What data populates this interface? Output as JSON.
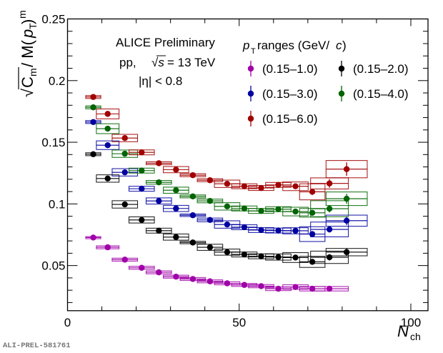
{
  "chart_data": {
    "type": "scatter",
    "title": "",
    "annotations": {
      "experiment": "ALICE Preliminary",
      "system": "pp,",
      "sqrt_s_symbol": "√s",
      "energy": "= 13 TeV",
      "eta_cut": "|η| < 0.8"
    },
    "xlabel_main": "N",
    "xlabel_sub": "ch",
    "ylabel": {
      "sqrt": "√",
      "c": "C",
      "c_sub": "m",
      "mid": " / M(",
      "p": "p",
      "p_sub": "T",
      "close": ")",
      "close_sub": "m"
    },
    "xlim": [
      0,
      105
    ],
    "ylim": [
      0.0134,
      0.25
    ],
    "x_ticks": [
      0,
      50,
      100
    ],
    "x_tick_labels": [
      "0",
      "50",
      "100"
    ],
    "x_minor_step": 10,
    "y_ticks": [
      0.05,
      0.1,
      0.15,
      0.2,
      0.25
    ],
    "y_tick_labels": [
      "0.05",
      "0.1",
      "0.15",
      "0.2",
      "0.25"
    ],
    "y_minor_step": 0.01,
    "grid": false,
    "legend": {
      "title_p": "p",
      "title_sub": "T",
      "title_rest": " ranges (GeV/",
      "title_c": "c",
      "title_end": ")",
      "placement": "top-right"
    },
    "x": [
      7.5,
      11.7,
      16.7,
      21.6,
      26.6,
      31.6,
      36.5,
      41.5,
      46.5,
      51.5,
      56.4,
      61.4,
      66.4,
      71.3,
      76.3,
      81.3
    ],
    "x_halfwidth": [
      2.2,
      3.3,
      3.7,
      3.7,
      3.7,
      3.7,
      3.7,
      3.7,
      3.7,
      3.7,
      3.7,
      3.7,
      3.7,
      3.7,
      5.5,
      6.0
    ],
    "series": [
      {
        "name": "(0.15–1.0)",
        "color": "#a000a8",
        "values": [
          0.0727,
          0.0648,
          0.0548,
          0.0482,
          0.0445,
          0.041,
          0.0391,
          0.0372,
          0.0356,
          0.0343,
          0.0333,
          0.0312,
          0.0326,
          0.0312,
          0.0312
        ],
        "sys": [
          0.0008,
          0.0012,
          0.0012,
          0.0012,
          0.0012,
          0.0012,
          0.0012,
          0.0012,
          0.0012,
          0.0012,
          0.0013,
          0.0015,
          0.0018,
          0.0018,
          0.0018
        ],
        "stat": [
          0.0005,
          0.0005,
          0.0005,
          0.0005,
          0.0005,
          0.0005,
          0.0005,
          0.0005,
          0.0005,
          0.0005,
          0.0006,
          0.0007,
          0.0008,
          0.001,
          0.0012
        ]
      },
      {
        "name": "(0.15–2.0)",
        "color": "#000000",
        "values": [
          0.1403,
          0.1206,
          0.0996,
          0.087,
          0.0783,
          0.0731,
          0.0687,
          0.0648,
          0.0609,
          0.059,
          0.0575,
          0.0569,
          0.0565,
          0.053,
          0.0567,
          0.0609
        ],
        "sys": [
          0.0012,
          0.003,
          0.003,
          0.0025,
          0.002,
          0.0025,
          0.001,
          0.0025,
          0.0025,
          0.002,
          0.002,
          0.0025,
          0.004,
          0.0045,
          0.005,
          0.003
        ],
        "stat": [
          0.0005,
          0.0005,
          0.0005,
          0.0005,
          0.0005,
          0.0005,
          0.0005,
          0.0006,
          0.0008,
          0.001,
          0.001,
          0.0012,
          0.0015,
          0.002,
          0.0025,
          0.003
        ]
      },
      {
        "name": "(0.15–3.0)",
        "color": "#0000a0",
        "values": [
          0.1664,
          0.1476,
          0.1256,
          0.1123,
          0.1024,
          0.0963,
          0.0908,
          0.087,
          0.0833,
          0.0811,
          0.0788,
          0.0784,
          0.0782,
          0.0755,
          0.0793,
          0.0864
        ],
        "sys": [
          0.0012,
          0.0035,
          0.003,
          0.002,
          0.0025,
          0.0025,
          0.001,
          0.0015,
          0.003,
          0.002,
          0.002,
          0.002,
          0.0025,
          0.006,
          0.006,
          0.0045
        ],
        "stat": [
          0.0005,
          0.0005,
          0.0005,
          0.0005,
          0.0005,
          0.0005,
          0.0005,
          0.0006,
          0.0008,
          0.001,
          0.001,
          0.0012,
          0.0015,
          0.002,
          0.0025,
          0.0035
        ]
      },
      {
        "name": "(0.15–4.0)",
        "color": "#006400",
        "values": [
          0.1783,
          0.161,
          0.1407,
          0.127,
          0.1175,
          0.1111,
          0.1061,
          0.1024,
          0.098,
          0.0963,
          0.0943,
          0.0957,
          0.0938,
          0.0928,
          0.0961,
          0.1042
        ],
        "sys": [
          0.0012,
          0.004,
          0.003,
          0.002,
          0.0015,
          0.0025,
          0.0012,
          0.0015,
          0.003,
          0.002,
          0.002,
          0.002,
          0.0035,
          0.0035,
          0.0065,
          0.0055
        ],
        "stat": [
          0.0005,
          0.0005,
          0.0005,
          0.0005,
          0.0005,
          0.0005,
          0.0005,
          0.0006,
          0.0008,
          0.001,
          0.001,
          0.0012,
          0.0015,
          0.002,
          0.003,
          0.004
        ]
      },
      {
        "name": "(0.15–6.0)",
        "color": "#a00000",
        "values": [
          0.1867,
          0.173,
          0.1534,
          0.1418,
          0.133,
          0.1278,
          0.1233,
          0.1192,
          0.1163,
          0.1143,
          0.1129,
          0.1154,
          0.1143,
          0.1098,
          0.1166,
          0.1282
        ],
        "sys": [
          0.0012,
          0.004,
          0.003,
          0.002,
          0.0012,
          0.0025,
          0.0012,
          0.0012,
          0.003,
          0.002,
          0.002,
          0.002,
          0.0035,
          0.0065,
          0.0045,
          0.007
        ],
        "stat": [
          0.0005,
          0.0005,
          0.0005,
          0.0005,
          0.0005,
          0.0005,
          0.0005,
          0.0006,
          0.0008,
          0.001,
          0.001,
          0.0012,
          0.0015,
          0.0025,
          0.0035,
          0.0055
        ]
      }
    ]
  },
  "footer": {
    "id_label": "ALI-PREL-581761"
  }
}
